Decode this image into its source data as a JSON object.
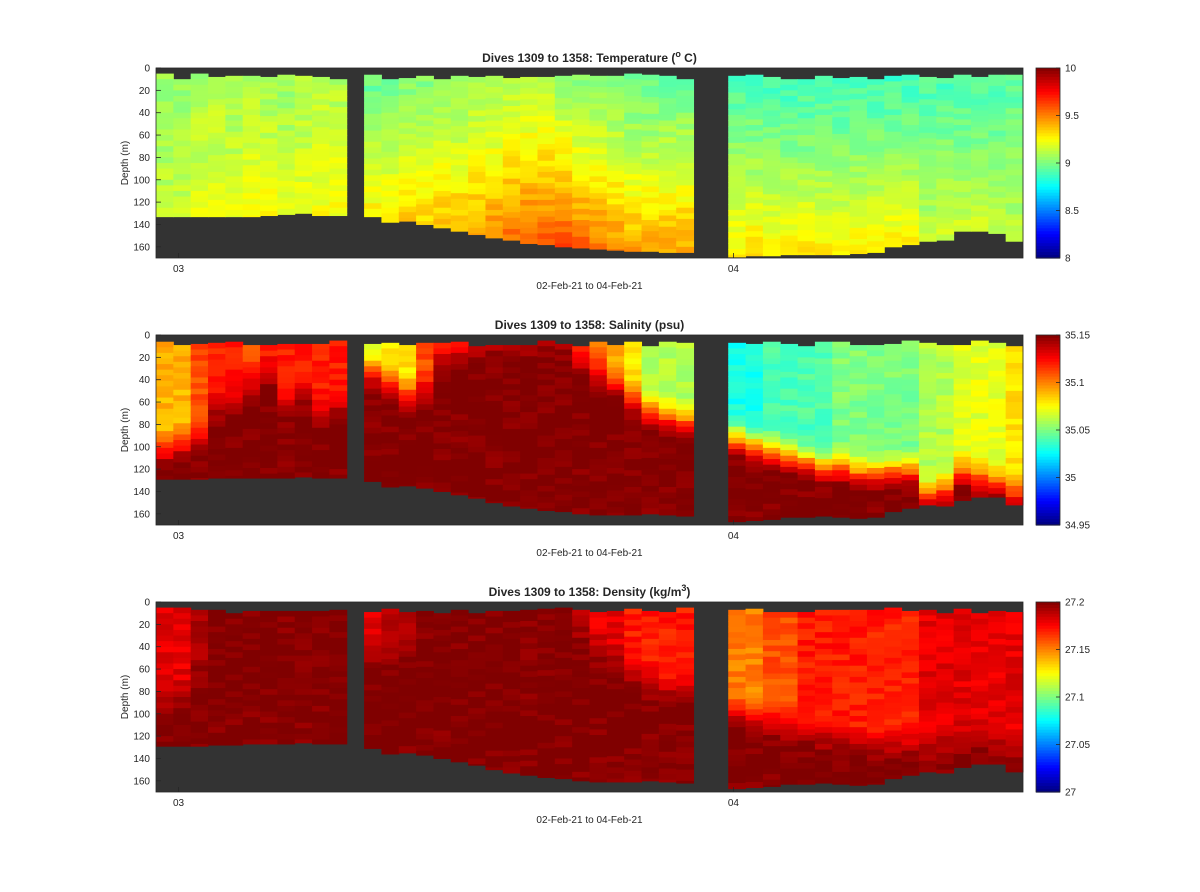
{
  "chart_data": [
    {
      "type": "heatmap",
      "title": {
        "main": "Dives 1309 to 1358: Temperature (",
        "sup": "o",
        "tail": " C)"
      },
      "xlabel": "02-Feb-21 to 04-Feb-21",
      "ylabel": "Depth (m)",
      "yticks": [
        "0",
        "20",
        "40",
        "60",
        "80",
        "100",
        "120",
        "140",
        "160"
      ],
      "ylim": [
        0,
        170
      ],
      "xticks": [
        "03",
        "04"
      ],
      "colorbar": {
        "min": 8,
        "max": 10,
        "ticks": [
          "8",
          "8.5",
          "9",
          "9.5",
          "10"
        ]
      },
      "colormap": "jet",
      "background_color": "#333333",
      "segments": [
        {
          "from": 0,
          "to": 11,
          "bottom": [
            133,
            133,
            133,
            133,
            133,
            133,
            132,
            131,
            130,
            132,
            132
          ]
        },
        {
          "from": 12,
          "to": 30,
          "bottom": [
            133,
            138,
            137,
            140,
            143,
            146,
            149,
            152,
            154,
            157,
            158,
            160,
            161,
            162,
            163,
            164,
            164,
            165,
            165
          ]
        },
        {
          "from": 33,
          "to": 43,
          "bottom": [
            169,
            168,
            168,
            167,
            167,
            167,
            167,
            166,
            165,
            160,
            158
          ]
        },
        {
          "from": 44,
          "to": 49,
          "bottom": [
            155,
            154,
            146,
            146,
            148,
            155
          ]
        }
      ],
      "profile": {
        "segments": [
          {
            "surface": [
              9.05,
              9.05,
              9.08,
              9.1,
              9.08,
              9.1,
              9.08,
              9.06,
              9.08,
              9.1,
              9.1
            ],
            "bottom": [
              9.15,
              9.15,
              9.2,
              9.2,
              9.2,
              9.25,
              9.25,
              9.2,
              9.25,
              9.25,
              9.25
            ]
          },
          {
            "surface": [
              8.95,
              8.95,
              9.0,
              9.0,
              9.02,
              9.02,
              9.05,
              9.05,
              9.08,
              9.1,
              9.1,
              9.05,
              9.0,
              9.0,
              8.98,
              8.95,
              8.95,
              8.95,
              8.95
            ],
            "bottom": [
              9.3,
              9.35,
              9.35,
              9.35,
              9.4,
              9.42,
              9.45,
              9.5,
              9.55,
              9.58,
              9.6,
              9.62,
              9.58,
              9.55,
              9.5,
              9.45,
              9.45,
              9.45,
              9.45
            ]
          },
          {
            "surface": [
              8.9,
              8.9,
              8.88,
              8.88,
              8.88,
              8.88,
              8.88,
              8.88,
              8.88,
              8.88,
              8.88
            ],
            "bottom": [
              9.3,
              9.32,
              9.3,
              9.3,
              9.3,
              9.3,
              9.28,
              9.3,
              9.3,
              9.3,
              9.3
            ]
          },
          {
            "surface": [
              8.9,
              8.9,
              8.9,
              8.9,
              8.9,
              8.92
            ],
            "bottom": [
              9.15,
              9.18,
              9.18,
              9.18,
              9.15,
              9.15
            ]
          }
        ]
      }
    },
    {
      "type": "heatmap",
      "title": {
        "main": "Dives 1309 to 1358: Salinity (psu)"
      },
      "xlabel": "02-Feb-21 to 04-Feb-21",
      "ylabel": "Depth (m)",
      "yticks": [
        "0",
        "20",
        "40",
        "60",
        "80",
        "100",
        "120",
        "140",
        "160"
      ],
      "ylim": [
        0,
        170
      ],
      "xticks": [
        "03",
        "04"
      ],
      "colorbar": {
        "min": 34.95,
        "max": 35.15,
        "ticks": [
          "34.95",
          "35",
          "35.05",
          "35.1",
          "35.15"
        ]
      },
      "colormap": "jet",
      "background_color": "#333333",
      "segments": [
        {
          "from": 0,
          "to": 11,
          "bottom": [
            129,
            129,
            129,
            128,
            128,
            128,
            128,
            128,
            127,
            128,
            128
          ]
        },
        {
          "from": 12,
          "to": 30,
          "bottom": [
            131,
            136,
            135,
            137,
            140,
            143,
            146,
            150,
            153,
            155,
            157,
            158,
            160,
            161,
            161,
            161,
            160,
            161,
            162
          ]
        },
        {
          "from": 33,
          "to": 43,
          "bottom": [
            167,
            166,
            165,
            163,
            163,
            162,
            163,
            164,
            163,
            158,
            155
          ]
        },
        {
          "from": 44,
          "to": 49,
          "bottom": [
            152,
            153,
            148,
            145,
            145,
            152
          ]
        }
      ],
      "profile": {
        "segments": [
          {
            "surface": [
              35.09,
              35.09,
              35.11,
              35.12,
              35.12,
              35.11,
              35.12,
              35.12,
              35.12,
              35.12,
              35.12
            ],
            "transition": [
              100,
              95,
              90,
              60,
              55,
              40,
              30,
              60,
              50,
              70,
              60
            ],
            "bottom": [
              35.15,
              35.15,
              35.15,
              35.15,
              35.15,
              35.15,
              35.15,
              35.15,
              35.15,
              35.15,
              35.15
            ]
          },
          {
            "surface": [
              35.07,
              35.08,
              35.08,
              35.11,
              35.12,
              35.12,
              35.12,
              35.13,
              35.13,
              35.13,
              35.13,
              35.13,
              35.11,
              35.1,
              35.09,
              35.08,
              35.06,
              35.06,
              35.06
            ],
            "transition": [
              30,
              40,
              50,
              45,
              20,
              15,
              10,
              5,
              5,
              5,
              5,
              5,
              20,
              30,
              40,
              55,
              65,
              70,
              75
            ],
            "bottom": [
              35.15,
              35.15,
              35.15,
              35.15,
              35.15,
              35.15,
              35.15,
              35.15,
              35.15,
              35.15,
              35.15,
              35.15,
              35.15,
              35.15,
              35.15,
              35.15,
              35.15,
              35.15,
              35.15
            ]
          },
          {
            "surface": [
              35.03,
              35.03,
              35.04,
              35.04,
              35.04,
              35.04,
              35.05,
              35.05,
              35.05,
              35.05,
              35.05
            ],
            "transition": [
              90,
              95,
              100,
              105,
              110,
              115,
              115,
              120,
              120,
              118,
              118
            ],
            "bottom": [
              35.15,
              35.15,
              35.15,
              35.15,
              35.15,
              35.15,
              35.15,
              35.15,
              35.15,
              35.15,
              35.15
            ]
          },
          {
            "surface": [
              35.06,
              35.06,
              35.07,
              35.07,
              35.07,
              35.08
            ],
            "transition": [
              140,
              135,
              120,
              125,
              130,
              140
            ],
            "bottom": [
              35.15,
              35.15,
              35.15,
              35.15,
              35.15,
              35.15
            ]
          }
        ]
      }
    },
    {
      "type": "heatmap",
      "title": {
        "main": "Dives 1309 to 1358: Density (kg/m",
        "sup": "3",
        "tail": ")"
      },
      "xlabel": "02-Feb-21 to 04-Feb-21",
      "ylabel": "Depth (m)",
      "yticks": [
        "0",
        "20",
        "40",
        "60",
        "80",
        "100",
        "120",
        "140",
        "160"
      ],
      "ylim": [
        0,
        170
      ],
      "xticks": [
        "03",
        "04"
      ],
      "colorbar": {
        "min": 27,
        "max": 27.2,
        "ticks": [
          "27",
          "27.05",
          "27.1",
          "27.15",
          "27.2"
        ]
      },
      "colormap": "jet",
      "background_color": "#333333",
      "segments": [
        {
          "from": 0,
          "to": 11,
          "bottom": [
            129,
            129,
            129,
            128,
            128,
            127,
            127,
            127,
            126,
            127,
            127
          ]
        },
        {
          "from": 12,
          "to": 30,
          "bottom": [
            131,
            136,
            135,
            137,
            140,
            143,
            146,
            150,
            153,
            155,
            157,
            158,
            160,
            161,
            161,
            161,
            160,
            161,
            162
          ]
        },
        {
          "from": 33,
          "to": 43,
          "bottom": [
            167,
            166,
            165,
            163,
            163,
            162,
            163,
            164,
            163,
            158,
            155
          ]
        },
        {
          "from": 44,
          "to": 49,
          "bottom": [
            152,
            153,
            148,
            145,
            145,
            152
          ]
        }
      ],
      "profile": {
        "segments": [
          {
            "surface": [
              27.18,
              27.18,
              27.19,
              27.2,
              27.2,
              27.2,
              27.2,
              27.2,
              27.2,
              27.2,
              27.2
            ],
            "transition": [
              90,
              80,
              60,
              40,
              30,
              20,
              20,
              20,
              20,
              20,
              20
            ],
            "bottom": [
              27.2,
              27.2,
              27.2,
              27.2,
              27.2,
              27.2,
              27.2,
              27.2,
              27.2,
              27.2,
              27.2
            ]
          },
          {
            "surface": [
              27.18,
              27.19,
              27.19,
              27.2,
              27.2,
              27.2,
              27.2,
              27.2,
              27.2,
              27.2,
              27.2,
              27.2,
              27.19,
              27.18,
              27.18,
              27.17,
              27.17,
              27.17,
              27.17
            ],
            "transition": [
              40,
              50,
              40,
              20,
              15,
              10,
              10,
              10,
              10,
              10,
              10,
              10,
              30,
              40,
              50,
              60,
              70,
              75,
              75
            ],
            "bottom": [
              27.2,
              27.2,
              27.2,
              27.2,
              27.2,
              27.2,
              27.2,
              27.2,
              27.2,
              27.2,
              27.2,
              27.2,
              27.2,
              27.2,
              27.2,
              27.2,
              27.2,
              27.2,
              27.2
            ]
          },
          {
            "surface": [
              27.15,
              27.15,
              27.16,
              27.16,
              27.17,
              27.17,
              27.17,
              27.17,
              27.17,
              27.17,
              27.17
            ],
            "transition": [
              95,
              100,
              105,
              110,
              115,
              118,
              120,
              125,
              125,
              125,
              125
            ],
            "bottom": [
              27.2,
              27.2,
              27.2,
              27.2,
              27.2,
              27.2,
              27.2,
              27.2,
              27.2,
              27.2,
              27.2
            ]
          },
          {
            "surface": [
              27.18,
              27.18,
              27.18,
              27.18,
              27.18,
              27.18
            ],
            "transition": [
              130,
              125,
              120,
              120,
              125,
              130
            ],
            "bottom": [
              27.2,
              27.2,
              27.2,
              27.2,
              27.2,
              27.2
            ]
          }
        ]
      }
    }
  ]
}
